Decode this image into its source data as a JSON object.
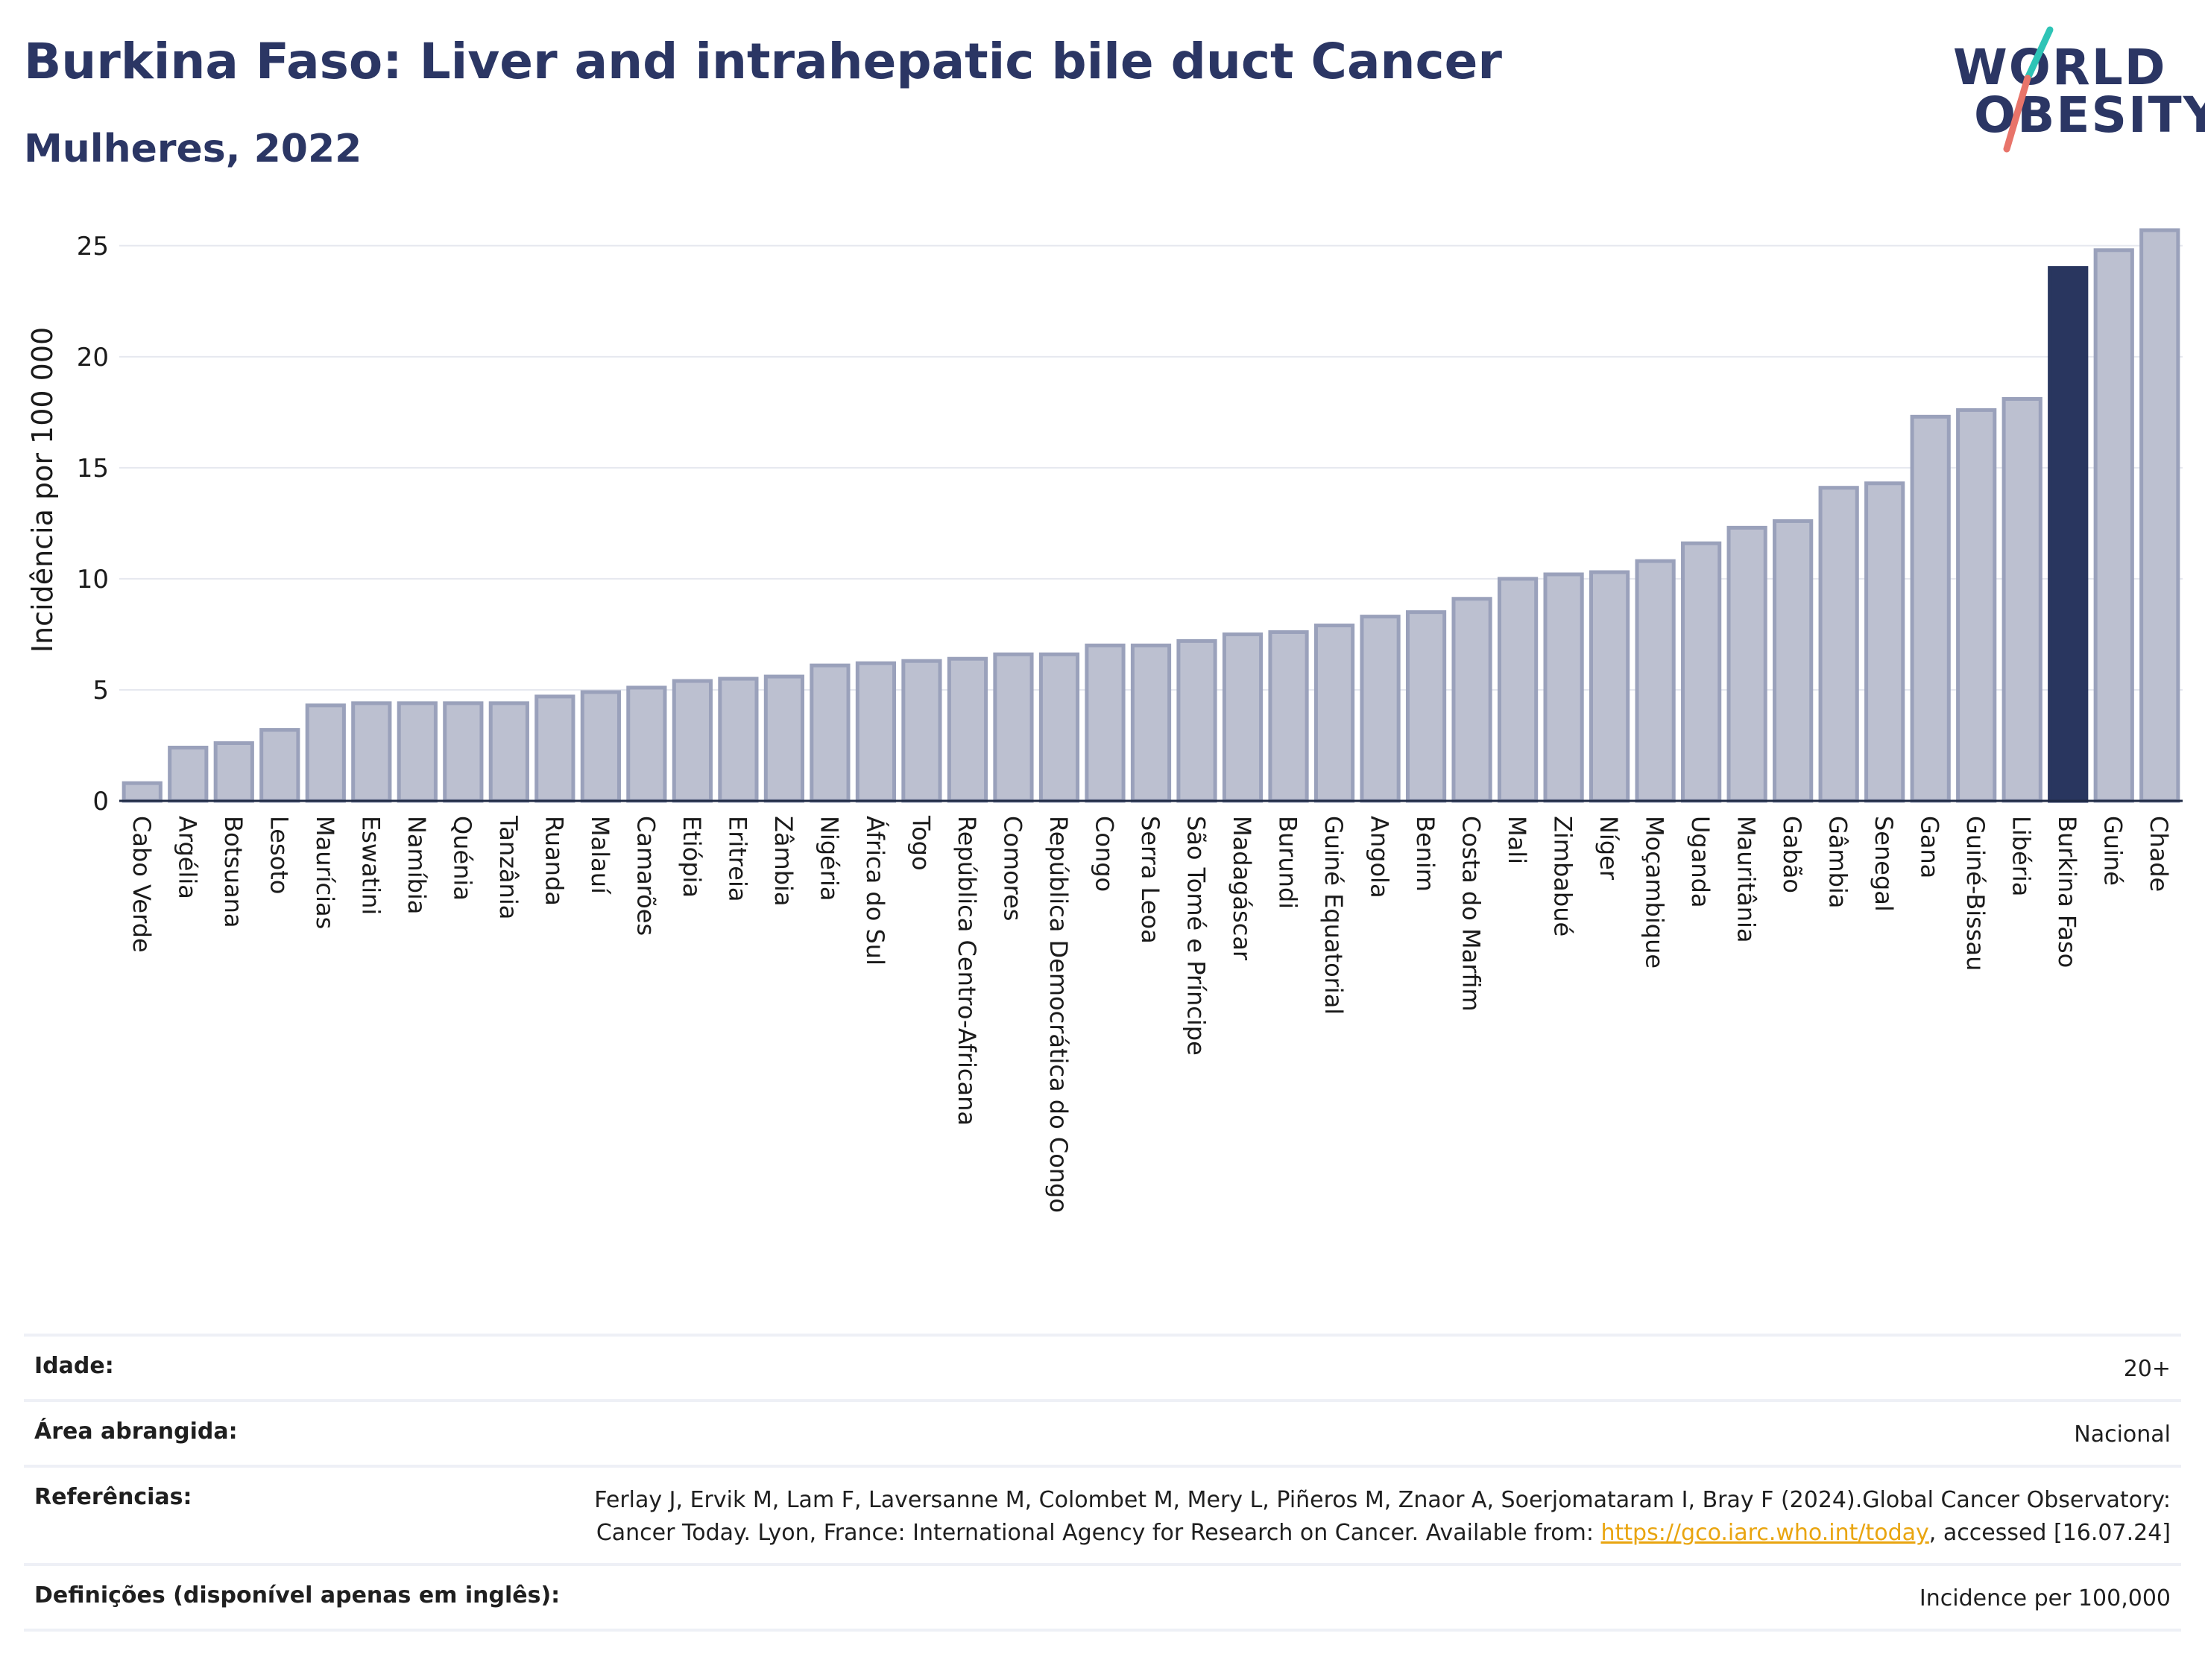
{
  "header": {
    "title": "Burkina Faso: Liver and intrahepatic bile duct Cancer",
    "subtitle": "Mulheres, 2022"
  },
  "logo": {
    "line1": "WORLD",
    "line2": "OBESITY",
    "accent_teal": "#2ec4b6",
    "accent_coral": "#e8746a"
  },
  "colors": {
    "bar_fill": "#bcc0d0",
    "bar_border": "#9aa1bb",
    "highlight": "#29365f",
    "axis": "#1f2a44",
    "grid": "#e6e8ef"
  },
  "chart_data": {
    "type": "bar",
    "title": "",
    "ylabel": "Incidência por 100 000",
    "xlabel": "",
    "ylim": [
      0,
      26
    ],
    "yticks": [
      0,
      5,
      10,
      15,
      20,
      25
    ],
    "grid": true,
    "highlight_category": "Burkina Faso",
    "categories": [
      "Cabo Verde",
      "Argélia",
      "Botsuana",
      "Lesoto",
      "Maurícias",
      "Eswatini",
      "Namíbia",
      "Quénia",
      "Tanzânia",
      "Ruanda",
      "Malauí",
      "Camarões",
      "Etiópia",
      "Eritreia",
      "Zâmbia",
      "Nigéria",
      "África do Sul",
      "Togo",
      "República Centro-Africana",
      "Comores",
      "República Democrática do Congo",
      "Congo",
      "Serra Leoa",
      "São Tomé e Príncipe",
      "Madagáscar",
      "Burundi",
      "Guiné Equatorial",
      "Angola",
      "Benim",
      "Costa do Marfim",
      "Mali",
      "Zimbabué",
      "Níger",
      "Moçambique",
      "Uganda",
      "Mauritânia",
      "Gabão",
      "Gâmbia",
      "Senegal",
      "Gana",
      "Guiné-Bissau",
      "Libéria",
      "Burkina Faso",
      "Guiné",
      "Chade"
    ],
    "values": [
      0.8,
      2.4,
      2.6,
      3.2,
      4.3,
      4.4,
      4.4,
      4.4,
      4.4,
      4.7,
      4.9,
      5.1,
      5.4,
      5.5,
      5.6,
      6.1,
      6.2,
      6.3,
      6.4,
      6.6,
      6.6,
      7.0,
      7.0,
      7.2,
      7.5,
      7.6,
      7.9,
      8.3,
      8.5,
      9.1,
      10.0,
      10.2,
      10.3,
      10.8,
      11.6,
      12.3,
      12.6,
      14.1,
      14.3,
      17.3,
      17.6,
      18.1,
      24.0,
      24.8,
      25.7
    ]
  },
  "info_table": [
    {
      "key": "Idade:",
      "value": "20+"
    },
    {
      "key": "Área abrangida:",
      "value": "Nacional"
    },
    {
      "key": "Referências:",
      "value_pre": "Ferlay J, Ervik M, Lam F, Laversanne M, Colombet M, Mery L, Piñeros M, Znaor A, Soerjomataram I, Bray F (2024).Global Cancer Observatory: Cancer Today. Lyon, France: International Agency for Research on Cancer. Available from: ",
      "link": "https://gco.iarc.who.int/today",
      "value_post": ", accessed [16.07.24]"
    },
    {
      "key": "Definições (disponível apenas em inglês):",
      "value": "Incidence per 100,000"
    }
  ]
}
